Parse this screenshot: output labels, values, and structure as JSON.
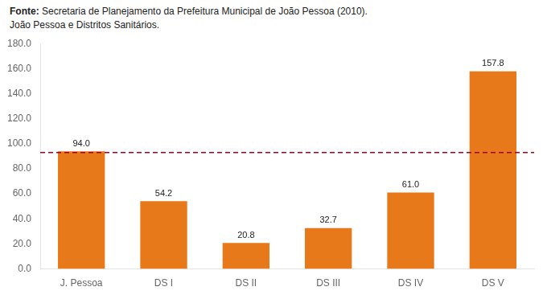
{
  "chart_data": {
    "type": "bar",
    "title": "João Pessoa e Distritos Sanitários.",
    "source": "Fonte: Secretaria de Planejamento da Prefeitura Municipal de João Pessoa (2010).",
    "categories": [
      "J. Pessoa",
      "DS I",
      "DS II",
      "DS III",
      "DS IV",
      "DS V"
    ],
    "values": [
      94.0,
      54.2,
      20.8,
      32.7,
      61.0,
      157.8
    ],
    "value_labels": [
      "94.0",
      "54.2",
      "20.8",
      "32.7",
      "61.0",
      "157.8"
    ],
    "color": "#E8791A",
    "reference_line": {
      "value": 93.0,
      "color": "#A00020",
      "line_style": "dashed"
    },
    "ylim": [
      0,
      180
    ],
    "yticks": [
      {
        "value": 0,
        "label": "0.0"
      },
      {
        "value": 20,
        "label": "20.0"
      },
      {
        "value": 40,
        "label": "40.0"
      },
      {
        "value": 60,
        "label": "60.0"
      },
      {
        "value": 80,
        "label": "80.0"
      },
      {
        "value": 100,
        "label": "100.0"
      },
      {
        "value": 120,
        "label": "120.0"
      },
      {
        "value": 140,
        "label": "140.0"
      },
      {
        "value": 160,
        "label": "160.0"
      },
      {
        "value": 180,
        "label": "180.0"
      }
    ],
    "grid": false,
    "data_labels": true
  }
}
